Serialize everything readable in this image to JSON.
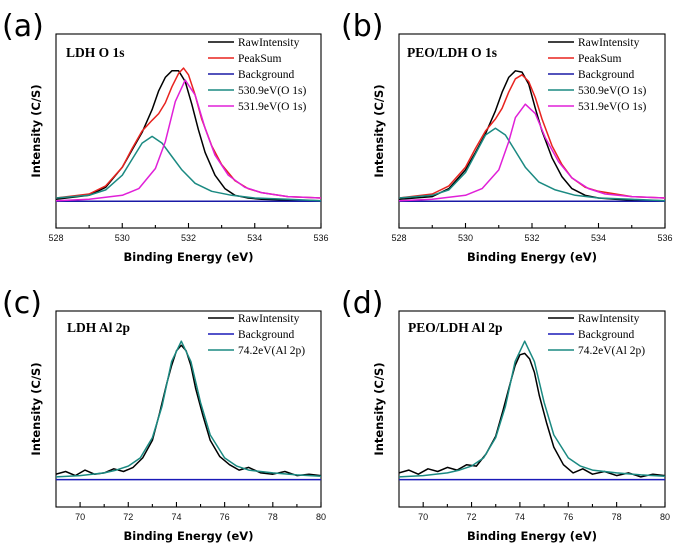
{
  "chart_data": [
    {
      "panel": "(a)",
      "title": "LDH O 1s",
      "type": "line",
      "xlabel": "Binding Energy (eV)",
      "ylabel": "Intensity (C/S)",
      "xlim": [
        528,
        536
      ],
      "ylim": [
        0,
        1.12
      ],
      "xticks": [
        528,
        530,
        532,
        534,
        536
      ],
      "legend_position": "top-right",
      "series": [
        {
          "name": "RawIntensity",
          "color": "#000000",
          "x": [
            528,
            529,
            529.5,
            530,
            530.3,
            530.6,
            530.9,
            531.1,
            531.3,
            531.5,
            531.7,
            531.9,
            532.1,
            532.3,
            532.5,
            532.8,
            533.1,
            533.4,
            533.8,
            534.2,
            535,
            536
          ],
          "y": [
            0.02,
            0.05,
            0.11,
            0.26,
            0.39,
            0.52,
            0.69,
            0.83,
            0.93,
            0.98,
            0.98,
            0.9,
            0.73,
            0.54,
            0.37,
            0.2,
            0.1,
            0.05,
            0.03,
            0.02,
            0.015,
            0.01
          ]
        },
        {
          "name": "PeakSum",
          "color": "#e8231f",
          "x": [
            528,
            529,
            529.5,
            530,
            530.3,
            530.6,
            530.9,
            531.1,
            531.3,
            531.5,
            531.7,
            531.85,
            532,
            532.2,
            532.4,
            532.7,
            533,
            533.4,
            533.8,
            534.2,
            535,
            536
          ],
          "y": [
            0.03,
            0.06,
            0.12,
            0.26,
            0.4,
            0.53,
            0.61,
            0.66,
            0.74,
            0.86,
            0.96,
            1.0,
            0.95,
            0.8,
            0.62,
            0.42,
            0.28,
            0.16,
            0.1,
            0.07,
            0.04,
            0.03
          ]
        },
        {
          "name": "Background",
          "color": "#1a1aa6",
          "x": [
            528,
            536
          ],
          "y": [
            0.005,
            0.005
          ]
        },
        {
          "name": "530.9eV(O 1s)",
          "color": "#1b8a82",
          "x": [
            528,
            529,
            529.5,
            530,
            530.3,
            530.6,
            530.9,
            531.2,
            531.5,
            531.8,
            532.2,
            532.7,
            533.3,
            534,
            535,
            536
          ],
          "y": [
            0.03,
            0.05,
            0.09,
            0.2,
            0.32,
            0.44,
            0.49,
            0.44,
            0.34,
            0.24,
            0.14,
            0.08,
            0.05,
            0.03,
            0.02,
            0.01
          ]
        },
        {
          "name": "531.9eV(O 1s)",
          "color": "#e020d8",
          "x": [
            528,
            529,
            530,
            530.5,
            531,
            531.3,
            531.6,
            531.9,
            532.2,
            532.5,
            532.8,
            533.2,
            533.7,
            534.2,
            535,
            536
          ],
          "y": [
            0.01,
            0.02,
            0.05,
            0.1,
            0.25,
            0.45,
            0.75,
            0.91,
            0.8,
            0.55,
            0.35,
            0.2,
            0.11,
            0.07,
            0.04,
            0.03
          ]
        }
      ]
    },
    {
      "panel": "(b)",
      "title": "PEO/LDH O 1s",
      "type": "line",
      "xlabel": "Binding Energy (eV)",
      "ylabel": "Intensity (C/S)",
      "xlim": [
        528,
        536
      ],
      "ylim": [
        0,
        1.12
      ],
      "xticks": [
        528,
        530,
        532,
        534,
        536
      ],
      "legend_position": "top-right",
      "series": [
        {
          "name": "RawIntensity",
          "color": "#000000",
          "x": [
            528,
            529,
            529.5,
            530,
            530.3,
            530.6,
            530.9,
            531.1,
            531.3,
            531.5,
            531.7,
            531.9,
            532.1,
            532.3,
            532.6,
            532.9,
            533.2,
            533.6,
            534,
            534.5,
            535,
            536
          ],
          "y": [
            0.02,
            0.04,
            0.1,
            0.24,
            0.37,
            0.51,
            0.68,
            0.82,
            0.93,
            0.98,
            0.97,
            0.88,
            0.7,
            0.53,
            0.33,
            0.19,
            0.1,
            0.05,
            0.03,
            0.02,
            0.015,
            0.01
          ]
        },
        {
          "name": "PeakSum",
          "color": "#e8231f",
          "x": [
            528,
            529,
            529.5,
            530,
            530.3,
            530.6,
            530.9,
            531.1,
            531.3,
            531.5,
            531.7,
            531.9,
            532.1,
            532.3,
            532.6,
            532.9,
            533.2,
            533.6,
            534,
            535,
            536
          ],
          "y": [
            0.03,
            0.06,
            0.12,
            0.26,
            0.4,
            0.53,
            0.62,
            0.7,
            0.82,
            0.92,
            0.95,
            0.9,
            0.78,
            0.62,
            0.42,
            0.28,
            0.18,
            0.11,
            0.08,
            0.04,
            0.03
          ]
        },
        {
          "name": "Background",
          "color": "#1a1aa6",
          "x": [
            528,
            536
          ],
          "y": [
            0.005,
            0.005
          ]
        },
        {
          "name": "530.9eV(O 1s)",
          "color": "#1b8a82",
          "x": [
            528,
            529,
            529.5,
            530,
            530.3,
            530.6,
            530.9,
            531.2,
            531.5,
            531.8,
            532.2,
            532.7,
            533.3,
            534,
            535,
            536
          ],
          "y": [
            0.03,
            0.05,
            0.09,
            0.22,
            0.36,
            0.5,
            0.55,
            0.5,
            0.38,
            0.26,
            0.15,
            0.09,
            0.05,
            0.03,
            0.02,
            0.01
          ]
        },
        {
          "name": "531.9eV(O 1s)",
          "color": "#e020d8",
          "x": [
            528,
            529,
            530,
            530.5,
            531,
            531.3,
            531.5,
            531.8,
            532.1,
            532.4,
            532.8,
            533.2,
            533.7,
            534.2,
            535,
            536
          ],
          "y": [
            0.01,
            0.02,
            0.05,
            0.1,
            0.24,
            0.45,
            0.63,
            0.73,
            0.66,
            0.48,
            0.3,
            0.18,
            0.1,
            0.06,
            0.04,
            0.03
          ]
        }
      ]
    },
    {
      "panel": "(c)",
      "title": "LDH Al 2p",
      "type": "line",
      "xlabel": "Binding Energy (eV)",
      "ylabel": "Intensity (C/S)",
      "xlim": [
        69,
        80
      ],
      "ylim": [
        0,
        1.12
      ],
      "xticks": [
        70,
        72,
        74,
        76,
        78,
        80
      ],
      "legend_position": "top-right",
      "series": [
        {
          "name": "RawIntensity",
          "color": "#000000",
          "x": [
            69,
            69.4,
            69.8,
            70.2,
            70.6,
            71,
            71.4,
            71.8,
            72.2,
            72.6,
            73,
            73.3,
            73.6,
            73.8,
            74,
            74.2,
            74.4,
            74.6,
            74.8,
            75.1,
            75.4,
            75.8,
            76.2,
            76.6,
            77,
            77.5,
            78,
            78.5,
            79,
            79.5,
            80
          ],
          "y": [
            0.05,
            0.07,
            0.04,
            0.08,
            0.05,
            0.06,
            0.09,
            0.07,
            0.1,
            0.17,
            0.3,
            0.5,
            0.72,
            0.85,
            0.96,
            1.0,
            0.96,
            0.85,
            0.68,
            0.48,
            0.3,
            0.18,
            0.12,
            0.08,
            0.1,
            0.06,
            0.05,
            0.07,
            0.04,
            0.05,
            0.04
          ]
        },
        {
          "name": "Background",
          "color": "#1a1ab8",
          "x": [
            69,
            80
          ],
          "y": [
            0.01,
            0.01
          ]
        },
        {
          "name": "74.2eV(Al 2p)",
          "color": "#1b8a82",
          "x": [
            69,
            70,
            71,
            71.5,
            72,
            72.5,
            73,
            73.4,
            73.8,
            74.2,
            74.6,
            75,
            75.4,
            76,
            76.5,
            77,
            78,
            79,
            80
          ],
          "y": [
            0.03,
            0.04,
            0.06,
            0.08,
            0.11,
            0.17,
            0.32,
            0.55,
            0.88,
            1.03,
            0.88,
            0.58,
            0.34,
            0.17,
            0.11,
            0.08,
            0.06,
            0.045,
            0.035
          ]
        }
      ]
    },
    {
      "panel": "(d)",
      "title": "PEO/LDH Al 2p",
      "type": "line",
      "xlabel": "Binding Energy (eV)",
      "ylabel": "Intensity (C/S)",
      "xlim": [
        69,
        80
      ],
      "ylim": [
        0,
        1.12
      ],
      "xticks": [
        70,
        72,
        74,
        76,
        78,
        80
      ],
      "legend_position": "top-right",
      "series": [
        {
          "name": "RawIntensity",
          "color": "#000000",
          "x": [
            69,
            69.4,
            69.8,
            70.2,
            70.6,
            71,
            71.4,
            71.8,
            72.2,
            72.6,
            73,
            73.3,
            73.6,
            73.8,
            74,
            74.2,
            74.4,
            74.6,
            74.8,
            75.1,
            75.4,
            75.8,
            76.2,
            76.6,
            77,
            77.5,
            78,
            78.5,
            79,
            79.5,
            80
          ],
          "y": [
            0.06,
            0.08,
            0.05,
            0.09,
            0.07,
            0.1,
            0.08,
            0.12,
            0.11,
            0.2,
            0.33,
            0.52,
            0.72,
            0.85,
            0.93,
            0.94,
            0.9,
            0.8,
            0.63,
            0.43,
            0.25,
            0.12,
            0.06,
            0.09,
            0.05,
            0.07,
            0.04,
            0.06,
            0.03,
            0.05,
            0.04
          ]
        },
        {
          "name": "Background",
          "color": "#1a1ab8",
          "x": [
            69,
            80
          ],
          "y": [
            0.01,
            0.01
          ]
        },
        {
          "name": "74.2eV(Al 2p)",
          "color": "#1b8a82",
          "x": [
            69,
            70,
            71,
            71.5,
            72,
            72.5,
            73,
            73.4,
            73.8,
            74.2,
            74.6,
            75,
            75.4,
            76,
            76.5,
            77,
            78,
            79,
            80
          ],
          "y": [
            0.03,
            0.04,
            0.06,
            0.08,
            0.11,
            0.17,
            0.32,
            0.55,
            0.88,
            1.03,
            0.88,
            0.58,
            0.34,
            0.17,
            0.11,
            0.08,
            0.06,
            0.045,
            0.035
          ]
        }
      ]
    }
  ]
}
